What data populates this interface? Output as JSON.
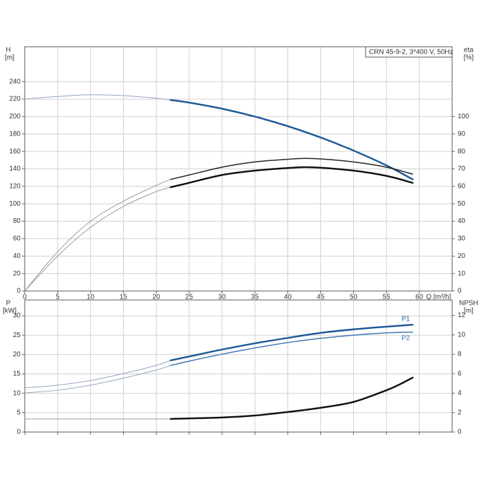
{
  "chart_data": [
    {
      "type": "line",
      "box_label": "CRN 45-9-2, 3*400 V, 50Hz",
      "ylabel": "H",
      "yunit": "[m]",
      "y2label": "eta",
      "y2unit": "[%]",
      "xlabel": "Q [m³/h]",
      "show_xtick_labels": true,
      "xlim": [
        0,
        65
      ],
      "xticks": [
        0,
        5,
        10,
        15,
        20,
        25,
        30,
        35,
        40,
        45,
        50,
        55,
        60
      ],
      "ylim": [
        0,
        280
      ],
      "yticks": [
        0,
        20,
        40,
        60,
        80,
        100,
        120,
        140,
        160,
        180,
        200,
        220,
        240
      ],
      "y2lim": [
        0,
        140
      ],
      "y2ticks": [
        0,
        10,
        20,
        30,
        40,
        50,
        60,
        70,
        80,
        90,
        100
      ],
      "grid": true,
      "series": [
        {
          "color": "#8fa3bf",
          "width": 1,
          "x": [
            0,
            5,
            10,
            15,
            20,
            22.2
          ],
          "values": [
            220,
            223,
            225,
            224,
            221,
            219
          ]
        },
        {
          "color": "#1f5a96",
          "width": 2.5,
          "x": [
            22.2,
            25,
            30,
            35,
            40,
            45,
            50,
            55,
            59
          ],
          "values": [
            219,
            216,
            209,
            200,
            189,
            176,
            161,
            144,
            128
          ]
        },
        {
          "color": "#9a9a9a",
          "width": 1,
          "axis": "y2",
          "x": [
            0,
            5,
            10,
            15,
            20,
            22.2
          ],
          "values": [
            0,
            22.5,
            40,
            51.5,
            60.5,
            64
          ]
        },
        {
          "color": "#222222",
          "width": 1.5,
          "axis": "y2",
          "x": [
            22.2,
            25,
            30,
            35,
            40,
            42.5,
            45,
            50,
            55,
            59
          ],
          "values": [
            64,
            66.5,
            71,
            74,
            75.5,
            76,
            75.7,
            74,
            71,
            67
          ]
        },
        {
          "color": "#9a9a9a",
          "width": 1,
          "axis": "y2",
          "x": [
            0,
            5,
            10,
            15,
            20,
            22.2
          ],
          "values": [
            0,
            20,
            36.5,
            48.5,
            57,
            59.5
          ]
        },
        {
          "color": "#111111",
          "width": 2.5,
          "axis": "y2",
          "x": [
            22.2,
            25,
            30,
            35,
            40,
            42.5,
            45,
            50,
            55,
            59
          ],
          "values": [
            59.5,
            62,
            66.5,
            69,
            70.5,
            71,
            70.7,
            69,
            66,
            62
          ]
        }
      ]
    },
    {
      "type": "line",
      "ylabel": "P",
      "yunit": "[kW]",
      "y2label": "NPSH",
      "y2unit": "[m]",
      "show_xtick_labels": false,
      "xlim": [
        0,
        65
      ],
      "xticks": [
        0,
        5,
        10,
        15,
        20,
        25,
        30,
        35,
        40,
        45,
        50,
        55,
        60
      ],
      "ylim": [
        0,
        34.1
      ],
      "yticks": [
        0,
        5,
        10,
        15,
        20,
        25,
        30
      ],
      "y2lim": [
        0,
        13.6
      ],
      "y2ticks": [
        0,
        2,
        4,
        6,
        8,
        10,
        12
      ],
      "grid": true,
      "series": [
        {
          "color": "#8fa3bf",
          "width": 1,
          "x": [
            0,
            5,
            10,
            15,
            20,
            22.2
          ],
          "values": [
            11.4,
            12.1,
            13.3,
            15.1,
            17.2,
            18.5
          ]
        },
        {
          "name": "P1",
          "label_side": "above",
          "color": "#1f5a96",
          "width": 2.5,
          "x": [
            22.2,
            25,
            30,
            35,
            40,
            45,
            50,
            55,
            59
          ],
          "values": [
            18.5,
            19.5,
            21.3,
            22.9,
            24.3,
            25.6,
            26.5,
            27.2,
            27.7
          ]
        },
        {
          "color": "#8fa3bf",
          "width": 1,
          "x": [
            0,
            5,
            10,
            15,
            20,
            22.2
          ],
          "values": [
            10.1,
            10.8,
            12.1,
            13.9,
            16,
            17.2
          ]
        },
        {
          "name": "P2",
          "label_side": "below",
          "color": "#3d73b0",
          "width": 1.5,
          "x": [
            22.2,
            25,
            30,
            35,
            40,
            45,
            50,
            55,
            59
          ],
          "values": [
            17.2,
            18.3,
            20.1,
            21.7,
            23.1,
            24.2,
            25,
            25.6,
            25.8
          ]
        },
        {
          "color": "#9a9a9a",
          "width": 1,
          "axis": "y2",
          "x": [
            0,
            10,
            20,
            22.2
          ],
          "values": [
            1.35,
            1.35,
            1.35,
            1.35
          ]
        },
        {
          "color": "#111111",
          "width": 2.5,
          "axis": "y2",
          "x": [
            22.2,
            25,
            30,
            35,
            40,
            45,
            50,
            55,
            57,
            59
          ],
          "values": [
            1.35,
            1.4,
            1.5,
            1.7,
            2.06,
            2.5,
            3.1,
            4.3,
            4.9,
            5.6
          ]
        }
      ]
    }
  ]
}
